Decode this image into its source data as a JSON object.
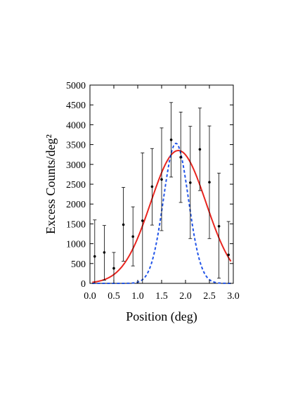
{
  "chart_data": {
    "type": "scatter",
    "title": "",
    "xlabel": "Position (deg)",
    "ylabel": "Excess Counts/deg²",
    "xlim": [
      0.0,
      3.0
    ],
    "ylim": [
      0,
      5000
    ],
    "xticks": [
      0.0,
      0.5,
      1.0,
      1.5,
      2.0,
      2.5,
      3.0
    ],
    "xtick_labels": [
      "0.0",
      "0.5",
      "1.0",
      "1.5",
      "2.0",
      "2.5",
      "3.0"
    ],
    "yticks": [
      0,
      500,
      1000,
      1500,
      2000,
      2500,
      3000,
      3500,
      4000,
      4500,
      5000
    ],
    "ytick_labels": [
      "0",
      "500",
      "1000",
      "1500",
      "2000",
      "2500",
      "3000",
      "3500",
      "4000",
      "4500",
      "5000"
    ],
    "grid": false,
    "legend": "none",
    "series": [
      {
        "kind": "points-with-errorbars",
        "color": "#000000",
        "points": [
          {
            "x": 0.1,
            "y": 680,
            "ylo": -240,
            "yhi": 1600
          },
          {
            "x": 0.3,
            "y": 780,
            "ylo": 80,
            "yhi": 1460
          },
          {
            "x": 0.5,
            "y": 380,
            "ylo": -30,
            "yhi": 780
          },
          {
            "x": 0.7,
            "y": 1480,
            "ylo": 560,
            "yhi": 2420
          },
          {
            "x": 0.9,
            "y": 1180,
            "ylo": 440,
            "yhi": 1930
          },
          {
            "x": 1.1,
            "y": 1580,
            "ylo": -130,
            "yhi": 3290
          },
          {
            "x": 1.3,
            "y": 2440,
            "ylo": 1470,
            "yhi": 3400
          },
          {
            "x": 1.5,
            "y": 2620,
            "ylo": 1330,
            "yhi": 3920
          },
          {
            "x": 1.7,
            "y": 3620,
            "ylo": 2680,
            "yhi": 4560
          },
          {
            "x": 1.9,
            "y": 3180,
            "ylo": 2040,
            "yhi": 4320
          },
          {
            "x": 2.1,
            "y": 2540,
            "ylo": 1130,
            "yhi": 3960
          },
          {
            "x": 2.3,
            "y": 3380,
            "ylo": 2340,
            "yhi": 4420
          },
          {
            "x": 2.5,
            "y": 2550,
            "ylo": 1130,
            "yhi": 3970
          },
          {
            "x": 2.7,
            "y": 1440,
            "ylo": 130,
            "yhi": 2780
          },
          {
            "x": 2.9,
            "y": 720,
            "ylo": -130,
            "yhi": 1560
          }
        ]
      },
      {
        "kind": "gaussian-curve",
        "color": "#e8251f",
        "dash": "solid",
        "amplitude": 3350,
        "mean": 1.85,
        "sigma": 0.58
      },
      {
        "kind": "gaussian-curve",
        "color": "#2255e8",
        "dash": "dashed",
        "amplitude": 3530,
        "mean": 1.8,
        "sigma": 0.26
      }
    ]
  }
}
